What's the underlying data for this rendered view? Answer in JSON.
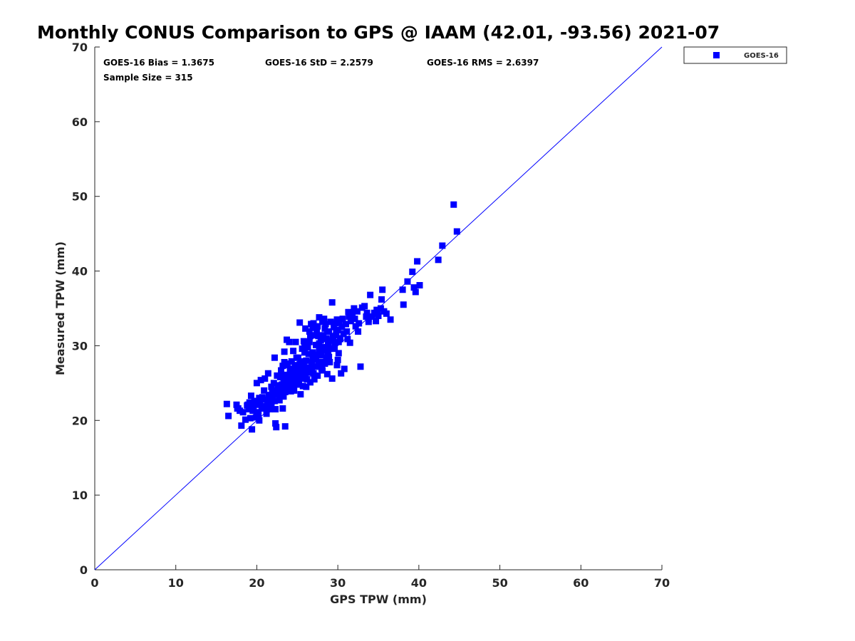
{
  "chart_data": {
    "type": "scatter",
    "title": "Monthly CONUS Comparison to GPS @ IAAM (42.01, -93.56) 2021-07",
    "xlabel": "GPS TPW (mm)",
    "ylabel": "Measured TPW (mm)",
    "xlim": [
      0,
      70
    ],
    "ylim": [
      0,
      70
    ],
    "xticks": [
      "0",
      "10",
      "20",
      "30",
      "40",
      "50",
      "60",
      "70"
    ],
    "yticks": [
      "0",
      "10",
      "20",
      "30",
      "40",
      "50",
      "60",
      "70"
    ],
    "grid": false,
    "legend_position": "outside-top-right",
    "reference_line": {
      "from": [
        0,
        0
      ],
      "to": [
        70,
        70
      ],
      "color": "#0000ff"
    },
    "stats": {
      "bias": "GOES-16 Bias = 1.3675",
      "std": "GOES-16 StD = 2.2579",
      "rms": "GOES-16 RMS = 2.6397",
      "sample": "Sample Size = 315"
    },
    "series": [
      {
        "name": "GOES-16",
        "color": "#0000ff",
        "marker": "square",
        "points": [
          [
            16.3,
            22.2
          ],
          [
            16.5,
            20.6
          ],
          [
            17.5,
            22.1
          ],
          [
            17.6,
            21.6
          ],
          [
            17.9,
            21.3
          ],
          [
            18.1,
            19.3
          ],
          [
            18.3,
            21.1
          ],
          [
            18.6,
            20.1
          ],
          [
            18.8,
            22.0
          ],
          [
            19.0,
            21.5
          ],
          [
            19.1,
            22.4
          ],
          [
            19.3,
            23.3
          ],
          [
            19.4,
            18.8
          ],
          [
            19.5,
            21.3
          ],
          [
            19.7,
            22.6
          ],
          [
            19.9,
            20.4
          ],
          [
            20.0,
            21.1
          ],
          [
            20.0,
            25.0
          ],
          [
            20.1,
            22.1
          ],
          [
            20.3,
            23.0
          ],
          [
            20.3,
            20.0
          ],
          [
            20.5,
            25.4
          ],
          [
            20.6,
            21.6
          ],
          [
            20.8,
            22.8
          ],
          [
            20.9,
            24.0
          ],
          [
            21.0,
            25.6
          ],
          [
            21.2,
            20.9
          ],
          [
            21.3,
            22.4
          ],
          [
            21.4,
            26.3
          ],
          [
            21.5,
            23.4
          ],
          [
            21.6,
            21.5
          ],
          [
            21.8,
            24.5
          ],
          [
            22.0,
            22.9
          ],
          [
            22.1,
            25.0
          ],
          [
            22.2,
            28.4
          ],
          [
            22.3,
            21.5
          ],
          [
            22.3,
            19.6
          ],
          [
            22.4,
            19.1
          ],
          [
            22.5,
            26.0
          ],
          [
            22.6,
            23.5
          ],
          [
            22.7,
            24.2
          ],
          [
            22.8,
            22.7
          ],
          [
            22.9,
            25.8
          ],
          [
            23.0,
            26.7
          ],
          [
            23.1,
            24.8
          ],
          [
            23.2,
            21.6
          ],
          [
            23.2,
            27.3
          ],
          [
            23.3,
            25.3
          ],
          [
            23.4,
            29.2
          ],
          [
            23.5,
            23.8
          ],
          [
            23.5,
            19.2
          ],
          [
            23.6,
            26.1
          ],
          [
            23.7,
            30.8
          ],
          [
            23.8,
            27.6
          ],
          [
            23.9,
            24.5
          ],
          [
            24.0,
            25.6
          ],
          [
            24.0,
            30.5
          ],
          [
            24.1,
            26.9
          ],
          [
            24.2,
            23.9
          ],
          [
            24.3,
            27.9
          ],
          [
            24.4,
            25.2
          ],
          [
            24.5,
            26.5
          ],
          [
            24.6,
            24.0
          ],
          [
            24.7,
            27.4
          ],
          [
            24.8,
            30.5
          ],
          [
            24.9,
            25.8
          ],
          [
            25.0,
            26.9
          ],
          [
            25.0,
            24.8
          ],
          [
            25.1,
            28.4
          ],
          [
            25.2,
            25.3
          ],
          [
            25.3,
            33.1
          ],
          [
            25.3,
            27.5
          ],
          [
            25.4,
            23.5
          ],
          [
            25.5,
            26.1
          ],
          [
            25.6,
            29.6
          ],
          [
            25.7,
            24.6
          ],
          [
            25.8,
            27.5
          ],
          [
            25.9,
            30.3
          ],
          [
            26.0,
            26.0
          ],
          [
            26.0,
            32.3
          ],
          [
            26.1,
            28.0
          ],
          [
            26.2,
            25.5
          ],
          [
            26.3,
            29.8
          ],
          [
            26.4,
            26.7
          ],
          [
            26.5,
            31.9
          ],
          [
            26.5,
            30.5
          ],
          [
            26.6,
            25.1
          ],
          [
            26.7,
            32.9
          ],
          [
            26.8,
            27.8
          ],
          [
            26.9,
            29.1
          ],
          [
            27.0,
            26.3
          ],
          [
            27.0,
            33.0
          ],
          [
            27.1,
            31.4
          ],
          [
            27.2,
            27.2
          ],
          [
            27.3,
            30.1
          ],
          [
            27.4,
            28.8
          ],
          [
            27.5,
            26.0
          ],
          [
            27.5,
            32.6
          ],
          [
            27.6,
            27.5
          ],
          [
            27.7,
            29.6
          ],
          [
            27.7,
            33.8
          ],
          [
            27.8,
            27.2
          ],
          [
            27.9,
            30.7
          ],
          [
            28.0,
            28.7
          ],
          [
            28.0,
            26.9
          ],
          [
            28.1,
            33.2
          ],
          [
            28.2,
            31.4
          ],
          [
            28.3,
            29.4
          ],
          [
            28.4,
            27.6
          ],
          [
            28.5,
            30.9
          ],
          [
            28.5,
            32.9
          ],
          [
            28.6,
            28.4
          ],
          [
            28.7,
            26.2
          ],
          [
            28.8,
            30.1
          ],
          [
            28.9,
            31.9
          ],
          [
            29.0,
            29.6
          ],
          [
            29.1,
            33.2
          ],
          [
            29.2,
            30.7
          ],
          [
            29.3,
            35.8
          ],
          [
            29.3,
            25.6
          ],
          [
            29.4,
            31.3
          ],
          [
            29.5,
            32.5
          ],
          [
            29.6,
            30.4
          ],
          [
            29.7,
            33.0
          ],
          [
            29.8,
            31.4
          ],
          [
            29.9,
            27.4
          ],
          [
            30.0,
            28.1
          ],
          [
            30.0,
            32.1
          ],
          [
            30.2,
            33.1
          ],
          [
            30.3,
            30.9
          ],
          [
            30.4,
            26.3
          ],
          [
            30.5,
            32.5
          ],
          [
            30.6,
            33.6
          ],
          [
            30.7,
            31.6
          ],
          [
            30.8,
            26.9
          ],
          [
            31.0,
            32.9
          ],
          [
            31.2,
            30.9
          ],
          [
            31.4,
            33.9
          ],
          [
            31.6,
            33.3
          ],
          [
            31.8,
            34.2
          ],
          [
            32.0,
            35.0
          ],
          [
            32.2,
            32.6
          ],
          [
            32.4,
            34.6
          ],
          [
            32.6,
            33.0
          ],
          [
            32.8,
            27.2
          ],
          [
            33.0,
            35.1
          ],
          [
            33.3,
            35.3
          ],
          [
            33.5,
            33.9
          ],
          [
            33.8,
            33.6
          ],
          [
            34.0,
            36.8
          ],
          [
            34.2,
            33.9
          ],
          [
            34.5,
            34.4
          ],
          [
            34.7,
            33.3
          ],
          [
            35.0,
            34.0
          ],
          [
            35.3,
            35.0
          ],
          [
            35.5,
            37.5
          ],
          [
            35.7,
            34.6
          ],
          [
            36.0,
            34.3
          ],
          [
            36.5,
            33.5
          ],
          [
            38.0,
            37.5
          ],
          [
            38.1,
            35.5
          ],
          [
            38.6,
            38.6
          ],
          [
            39.2,
            39.9
          ],
          [
            39.4,
            37.8
          ],
          [
            39.6,
            37.2
          ],
          [
            39.8,
            41.3
          ],
          [
            40.1,
            38.1
          ],
          [
            42.4,
            41.5
          ],
          [
            42.9,
            43.4
          ],
          [
            44.3,
            48.9
          ],
          [
            44.7,
            45.3
          ],
          [
            21.8,
            22.3
          ],
          [
            22.6,
            24.7
          ],
          [
            23.9,
            25.0
          ],
          [
            24.2,
            26.1
          ],
          [
            24.7,
            25.4
          ],
          [
            25.1,
            27.3
          ],
          [
            25.6,
            25.6
          ],
          [
            26.3,
            26.4
          ],
          [
            26.8,
            27.0
          ],
          [
            27.3,
            28.2
          ],
          [
            27.8,
            29.0
          ],
          [
            28.2,
            29.8
          ],
          [
            28.8,
            29.2
          ],
          [
            29.4,
            30.8
          ],
          [
            29.8,
            32.0
          ],
          [
            30.1,
            30.5
          ],
          [
            26.4,
            28.9
          ],
          [
            25.9,
            29.1
          ],
          [
            27.6,
            31.3
          ],
          [
            28.4,
            32.3
          ],
          [
            24.9,
            28.4
          ],
          [
            23.8,
            27.4
          ],
          [
            22.9,
            25.9
          ],
          [
            21.9,
            24.0
          ],
          [
            20.7,
            23.1
          ],
          [
            19.6,
            21.9
          ],
          [
            20.2,
            20.8
          ],
          [
            21.1,
            21.9
          ],
          [
            22.0,
            23.4
          ],
          [
            23.3,
            23.2
          ],
          [
            24.4,
            24.4
          ],
          [
            25.7,
            26.8
          ],
          [
            26.9,
            28.4
          ],
          [
            27.9,
            27.8
          ],
          [
            28.9,
            28.5
          ],
          [
            29.6,
            29.6
          ],
          [
            30.3,
            31.0
          ],
          [
            31.1,
            31.9
          ],
          [
            32.1,
            33.6
          ],
          [
            33.6,
            34.4
          ],
          [
            34.8,
            34.8
          ],
          [
            35.4,
            36.2
          ],
          [
            27.4,
            32.1
          ],
          [
            26.6,
            31.3
          ],
          [
            28.6,
            31.0
          ],
          [
            25.4,
            27.9
          ],
          [
            24.6,
            26.6
          ],
          [
            23.6,
            24.5
          ],
          [
            22.5,
            23.9
          ],
          [
            21.5,
            23.2
          ],
          [
            20.4,
            22.3
          ],
          [
            19.8,
            22.6
          ],
          [
            18.9,
            22.1
          ],
          [
            17.7,
            21.6
          ],
          [
            26.1,
            24.5
          ],
          [
            27.1,
            25.5
          ],
          [
            28.1,
            26.7
          ],
          [
            29.0,
            27.8
          ],
          [
            30.1,
            29.0
          ],
          [
            31.5,
            30.4
          ],
          [
            32.5,
            31.9
          ],
          [
            33.8,
            33.2
          ],
          [
            34.9,
            34.3
          ],
          [
            25.8,
            30.6
          ],
          [
            24.5,
            29.3
          ],
          [
            23.4,
            27.8
          ],
          [
            26.9,
            32.4
          ],
          [
            28.3,
            33.6
          ],
          [
            29.9,
            33.5
          ],
          [
            31.3,
            34.5
          ],
          [
            27.7,
            30.3
          ],
          [
            28.7,
            31.9
          ],
          [
            26.2,
            27.1
          ],
          [
            25.3,
            26.1
          ],
          [
            24.1,
            24.6
          ],
          [
            23.1,
            24.0
          ],
          [
            22.2,
            22.6
          ],
          [
            21.2,
            21.4
          ],
          [
            20.1,
            20.6
          ],
          [
            19.2,
            20.3
          ]
        ]
      }
    ]
  }
}
